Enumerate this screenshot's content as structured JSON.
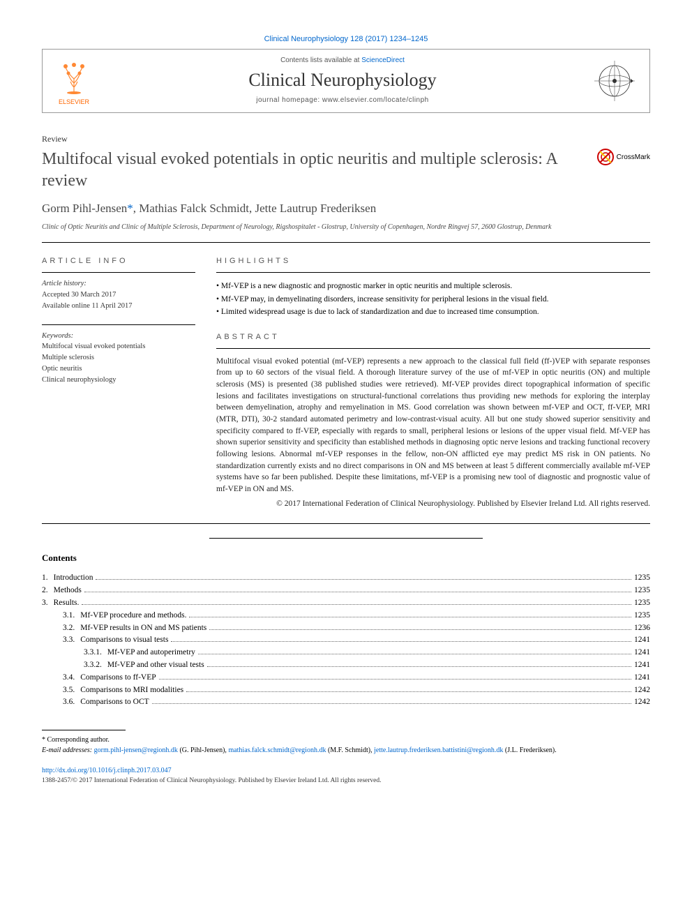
{
  "citation": "Clinical Neurophysiology 128 (2017) 1234–1245",
  "masthead": {
    "contents_prefix": "Contents lists available at ",
    "contents_link": "ScienceDirect",
    "journal_name": "Clinical Neurophysiology",
    "homepage_prefix": "journal homepage: ",
    "homepage_url": "www.elsevier.com/locate/clinph",
    "publisher_label": "ELSEVIER"
  },
  "article": {
    "type": "Review",
    "title": "Multifocal visual evoked potentials in optic neuritis and multiple sclerosis: A review",
    "crossmark_label": "CrossMark",
    "authors_html": "Gorm Pihl-Jensen *, Mathias Falck Schmidt, Jette Lautrup Frederiksen",
    "author_1": "Gorm Pihl-Jensen",
    "corr_marker": "*",
    "author_2": ", Mathias Falck Schmidt, Jette Lautrup Frederiksen",
    "affiliation": "Clinic of Optic Neuritis and Clinic of Multiple Sclerosis, Department of Neurology, Rigshospitalet - Glostrup, University of Copenhagen, Nordre Ringvej 57, 2600 Glostrup, Denmark"
  },
  "info": {
    "article_info_head": "ARTICLE INFO",
    "history_label": "Article history:",
    "accepted": "Accepted 30 March 2017",
    "online": "Available online 11 April 2017",
    "keywords_label": "Keywords:",
    "keywords": [
      "Multifocal visual evoked potentials",
      "Multiple sclerosis",
      "Optic neuritis",
      "Clinical neurophysiology"
    ]
  },
  "highlights": {
    "head": "HIGHLIGHTS",
    "items": [
      "Mf-VEP is a new diagnostic and prognostic marker in optic neuritis and multiple sclerosis.",
      "Mf-VEP may, in demyelinating disorders, increase sensitivity for peripheral lesions in the visual field.",
      "Limited widespread usage is due to lack of standardization and due to increased time consumption."
    ]
  },
  "abstract": {
    "head": "ABSTRACT",
    "body": "Multifocal visual evoked potential (mf-VEP) represents a new approach to the classical full field (ff-)VEP with separate responses from up to 60 sectors of the visual field. A thorough literature survey of the use of mf-VEP in optic neuritis (ON) and multiple sclerosis (MS) is presented (38 published studies were retrieved). Mf-VEP provides direct topographical information of specific lesions and facilitates investigations on structural-functional correlations thus providing new methods for exploring the interplay between demyelination, atrophy and remyelination in MS. Good correlation was shown between mf-VEP and OCT, ff-VEP, MRI (MTR, DTI), 30-2 standard automated perimetry and low-contrast-visual acuity. All but one study showed superior sensitivity and specificity compared to ff-VEP, especially with regards to small, peripheral lesions or lesions of the upper visual field. Mf-VEP has shown superior sensitivity and specificity than established methods in diagnosing optic nerve lesions and tracking functional recovery following lesions. Abnormal mf-VEP responses in the fellow, non-ON afflicted eye may predict MS risk in ON patients. No standardization currently exists and no direct comparisons in ON and MS between at least 5 different commercially available mf-VEP systems have so far been published. Despite these limitations, mf-VEP is a promising new tool of diagnostic and prognostic value of mf-VEP in ON and MS.",
    "copyright": "© 2017 International Federation of Clinical Neurophysiology. Published by Elsevier Ireland Ltd. All rights reserved."
  },
  "contents": {
    "title": "Contents",
    "items": [
      {
        "num": "1.",
        "label": "Introduction",
        "page": "1235",
        "indent": 0
      },
      {
        "num": "2.",
        "label": "Methods",
        "page": "1235",
        "indent": 0
      },
      {
        "num": "3.",
        "label": "Results.",
        "page": "1235",
        "indent": 0
      },
      {
        "num": "3.1.",
        "label": "Mf-VEP procedure and methods.",
        "page": "1235",
        "indent": 1
      },
      {
        "num": "3.2.",
        "label": "Mf-VEP results in ON and MS patients",
        "page": "1236",
        "indent": 1
      },
      {
        "num": "3.3.",
        "label": "Comparisons to visual tests",
        "page": "1241",
        "indent": 1
      },
      {
        "num": "3.3.1.",
        "label": "Mf-VEP and autoperimetry",
        "page": "1241",
        "indent": 2
      },
      {
        "num": "3.3.2.",
        "label": "Mf-VEP and other visual tests",
        "page": "1241",
        "indent": 2
      },
      {
        "num": "3.4.",
        "label": "Comparisons to ff-VEP",
        "page": "1241",
        "indent": 1
      },
      {
        "num": "3.5.",
        "label": "Comparisons to MRI modalities",
        "page": "1242",
        "indent": 1
      },
      {
        "num": "3.6.",
        "label": "Comparisons to OCT",
        "page": "1242",
        "indent": 1
      }
    ]
  },
  "footer": {
    "corr_label": "* Corresponding author.",
    "email_label": "E-mail addresses:",
    "emails": [
      {
        "addr": "gorm.pihl-jensen@regionh.dk",
        "who": "(G. Pihl-Jensen)"
      },
      {
        "addr": "mathias.falck.schmidt@regionh.dk",
        "who": "(M.F. Schmidt)"
      },
      {
        "addr": "jette.lautrup.frederiksen.battistini@regionh.dk",
        "who": "(J.L. Frederiksen)."
      }
    ],
    "doi": "http://dx.doi.org/10.1016/j.clinph.2017.03.047",
    "issn": "1388-2457/© 2017 International Federation of Clinical Neurophysiology. Published by Elsevier Ireland Ltd. All rights reserved."
  },
  "colors": {
    "link": "#0066cc",
    "elsevier_orange": "#ff6600",
    "heading_gray": "#4a4a4a",
    "text": "#000000",
    "border": "#999999"
  }
}
